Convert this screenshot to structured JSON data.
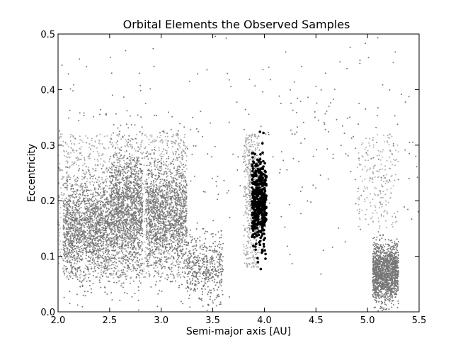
{
  "chart_data": {
    "type": "scatter",
    "title": "Orbital Elements the Observed Samples",
    "xlabel": "Semi-major axis [AU]",
    "ylabel": "Eccentricity",
    "xlim": [
      2.0,
      5.5
    ],
    "ylim": [
      0.0,
      0.5
    ],
    "x_ticks": [
      2.0,
      2.5,
      3.0,
      3.5,
      4.0,
      4.5,
      5.0,
      5.5
    ],
    "x_tick_labels": [
      "2.0",
      "2.5",
      "3.0",
      "3.5",
      "4.0",
      "4.5",
      "5.0",
      "5.5"
    ],
    "y_ticks": [
      0.0,
      0.1,
      0.2,
      0.3,
      0.4,
      0.5
    ],
    "y_tick_labels": [
      "0.0",
      "0.1",
      "0.2",
      "0.3",
      "0.4",
      "0.5"
    ],
    "grid": false,
    "legend": "none",
    "series": [
      {
        "color": "#777777",
        "marker": "dot",
        "clusters": [
          {
            "x_range": [
              2.05,
              2.5
            ],
            "e_center": 0.15,
            "e_spread": 0.09,
            "density": "high"
          },
          {
            "x_range": [
              2.5,
              2.82
            ],
            "e_center": 0.18,
            "e_spread": 0.11,
            "density": "high"
          },
          {
            "x_range": [
              2.85,
              3.25
            ],
            "e_center": 0.17,
            "e_spread": 0.1,
            "density": "high"
          },
          {
            "x_range": [
              3.25,
              3.6
            ],
            "e_center": 0.08,
            "e_spread": 0.06,
            "density": "medium"
          },
          {
            "x_range": [
              3.85,
              4.0
            ],
            "e_center": 0.2,
            "e_spread": 0.08,
            "density": "low"
          },
          {
            "x_range": [
              5.05,
              5.3
            ],
            "e_center": 0.07,
            "e_spread": 0.05,
            "density": "high"
          },
          {
            "x_range": [
              2.0,
              5.5
            ],
            "e_center": 0.3,
            "e_spread": 0.2,
            "density": "sparse"
          }
        ]
      },
      {
        "color": "#b0b0b0",
        "marker": "dot",
        "clusters": [
          {
            "x_range": [
              2.0,
              3.25
            ],
            "e_range": [
              0.06,
              0.32
            ],
            "density": "high"
          },
          {
            "x_range": [
              3.8,
              3.95
            ],
            "e_range": [
              0.08,
              0.32
            ],
            "density": "medium"
          },
          {
            "x_range": [
              4.9,
              5.3
            ],
            "e_range": [
              0.15,
              0.32
            ],
            "density": "low"
          }
        ]
      },
      {
        "color": "#000000",
        "marker": "point",
        "clusters": [
          {
            "x_range": [
              3.88,
              4.02
            ],
            "e_center": 0.2,
            "e_spread": 0.08,
            "e_range": [
              0.04,
              0.39
            ],
            "density": "medium"
          }
        ]
      }
    ]
  }
}
